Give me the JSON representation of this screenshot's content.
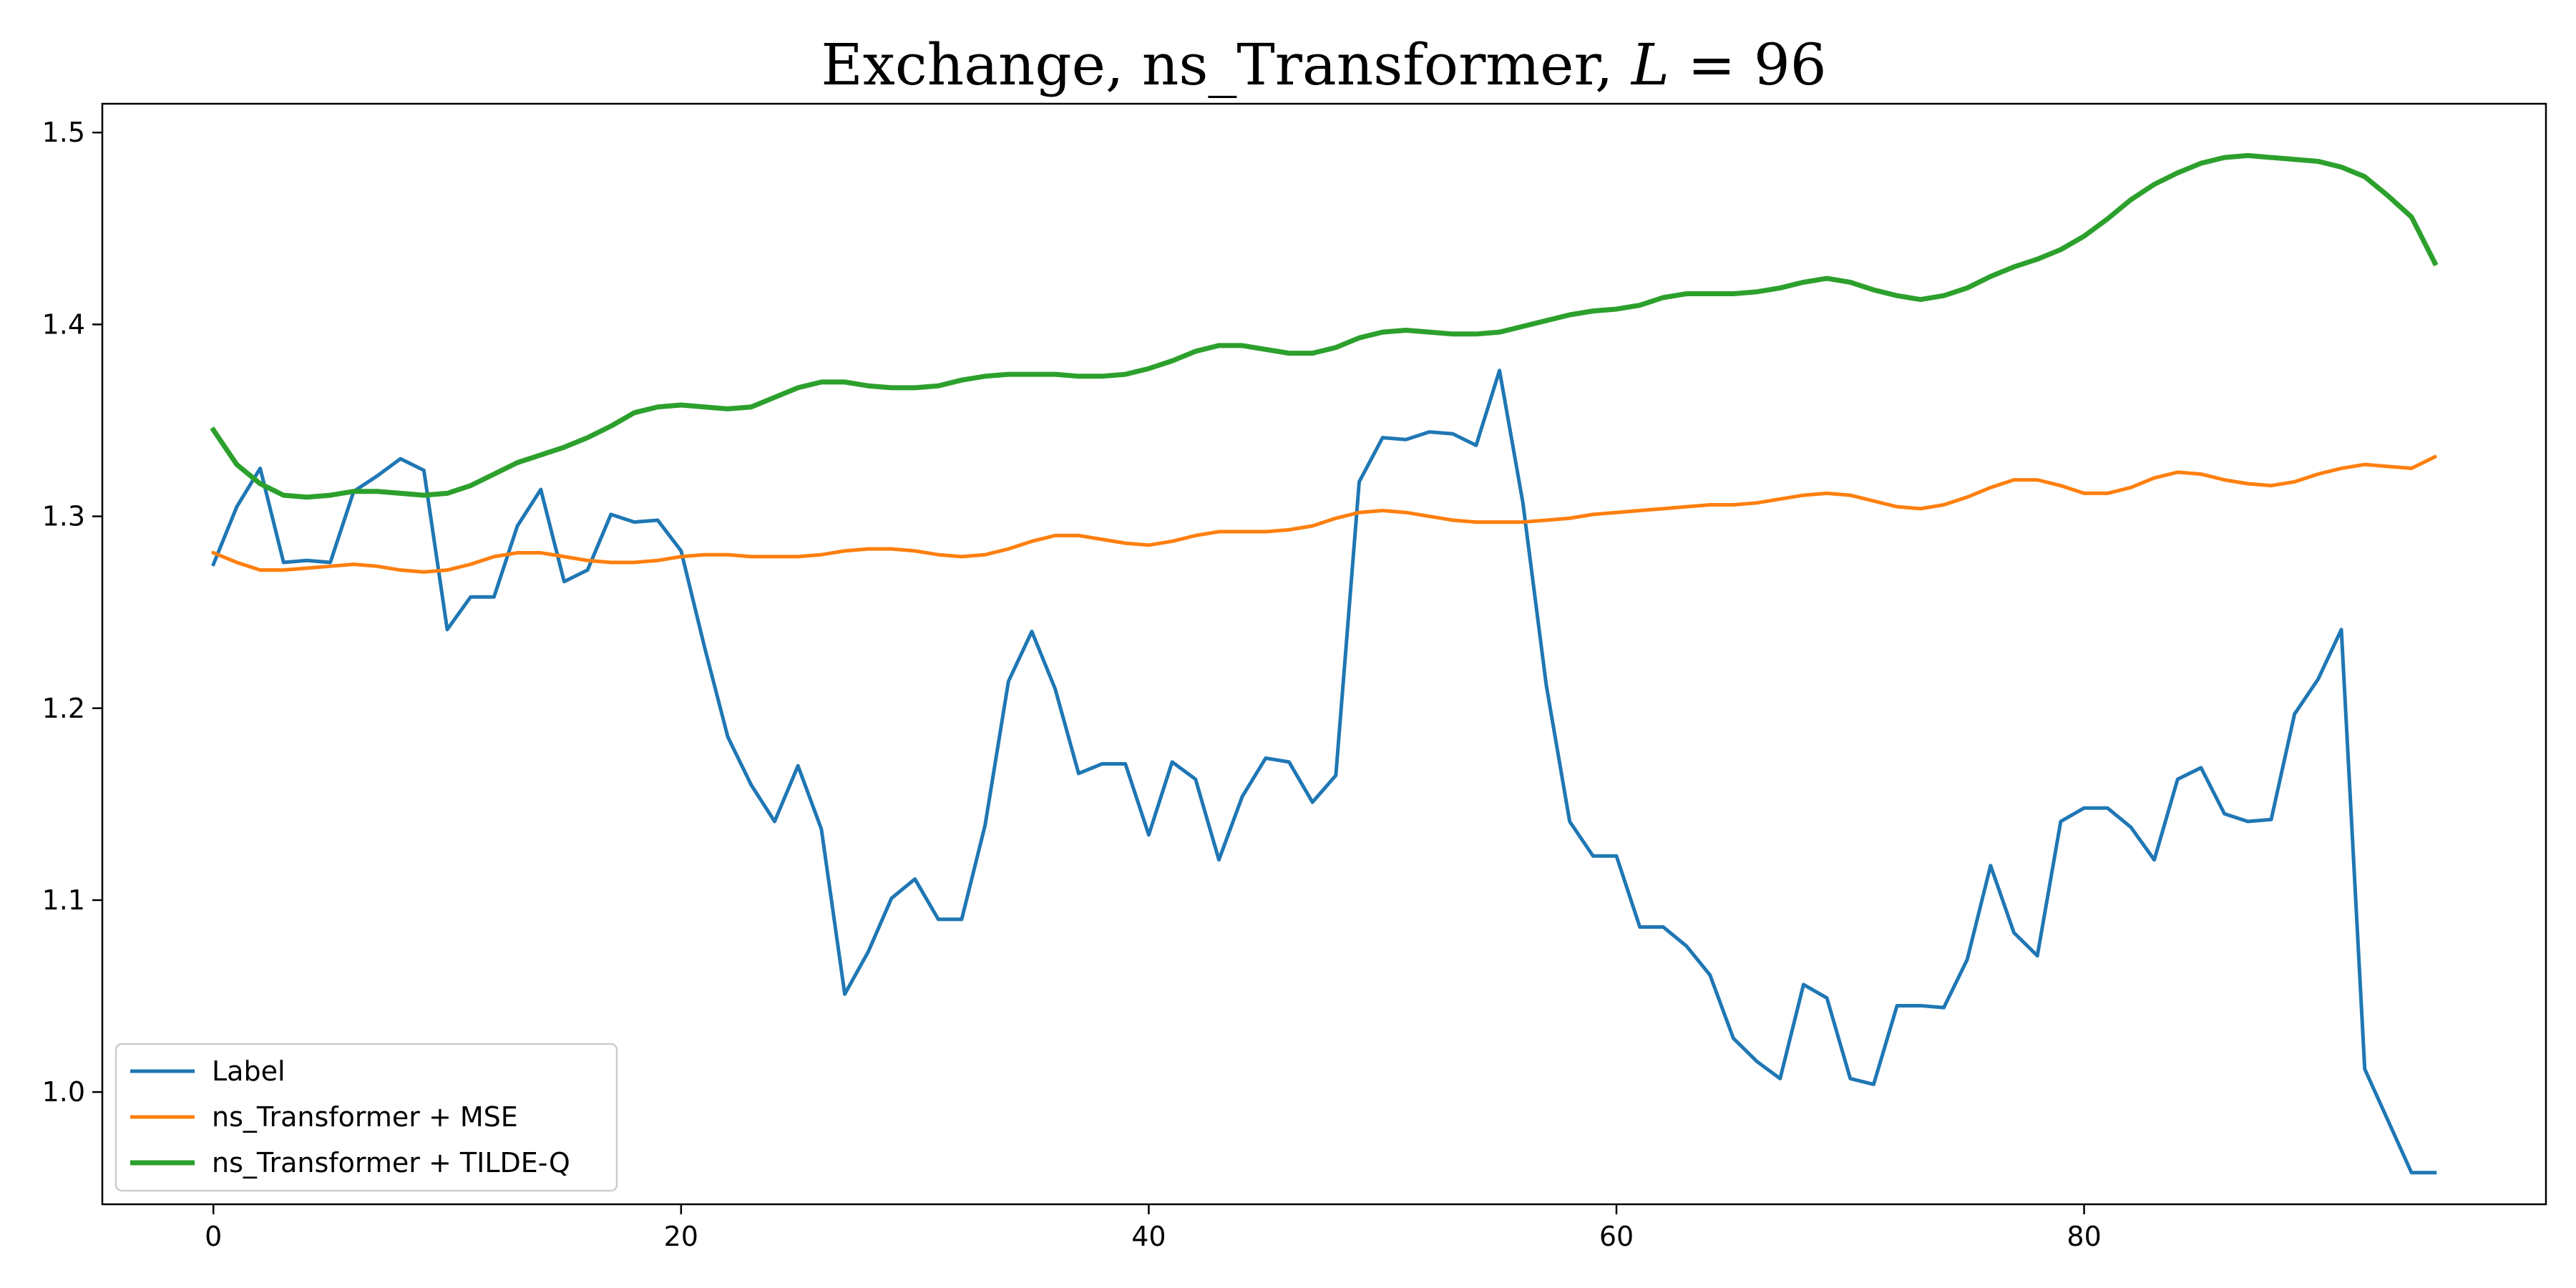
{
  "chart_data": {
    "type": "line",
    "title_prefix": "Exchange, ns_Transformer, ",
    "title_var": "L",
    "title_suffix": " = 96",
    "xlabel": "",
    "ylabel": "",
    "xlim": [
      -4.75,
      99.75
    ],
    "ylim": [
      0.9415,
      1.515
    ],
    "xticks": [
      0,
      20,
      40,
      60,
      80
    ],
    "yticks": [
      1.0,
      1.1,
      1.2,
      1.3,
      1.4,
      1.5
    ],
    "xtick_labels": [
      "0",
      "20",
      "40",
      "60",
      "80"
    ],
    "ytick_labels": [
      "1.0",
      "1.1",
      "1.2",
      "1.3",
      "1.4",
      "1.5"
    ],
    "grid": false,
    "legend_position": "lower-left",
    "series": [
      {
        "name": "Label",
        "color": "#1f77b4",
        "width": 5,
        "values": [
          1.275,
          1.305,
          1.325,
          1.276,
          1.277,
          1.276,
          1.313,
          1.321,
          1.33,
          1.324,
          1.241,
          1.258,
          1.258,
          1.295,
          1.314,
          1.266,
          1.272,
          1.301,
          1.297,
          1.298,
          1.282,
          1.232,
          1.185,
          1.16,
          1.141,
          1.17,
          1.137,
          1.051,
          1.073,
          1.101,
          1.111,
          1.09,
          1.09,
          1.139,
          1.214,
          1.24,
          1.21,
          1.166,
          1.171,
          1.171,
          1.134,
          1.172,
          1.163,
          1.121,
          1.154,
          1.174,
          1.172,
          1.151,
          1.165,
          1.318,
          1.341,
          1.34,
          1.344,
          1.343,
          1.337,
          1.376,
          1.307,
          1.212,
          1.141,
          1.123,
          1.123,
          1.086,
          1.086,
          1.076,
          1.061,
          1.028,
          1.016,
          1.007,
          1.056,
          1.049,
          1.007,
          1.004,
          1.045,
          1.045,
          1.044,
          1.069,
          1.118,
          1.083,
          1.071,
          1.141,
          1.148,
          1.148,
          1.138,
          1.121,
          1.163,
          1.169,
          1.145,
          1.141,
          1.142,
          1.197,
          1.215,
          1.241,
          1.012,
          0.985,
          0.958,
          0.958
        ]
      },
      {
        "name": "ns_Transformer + MSE",
        "color": "#ff7f0e",
        "width": 5,
        "values": [
          1.281,
          1.276,
          1.272,
          1.272,
          1.273,
          1.274,
          1.275,
          1.274,
          1.272,
          1.271,
          1.272,
          1.275,
          1.279,
          1.281,
          1.281,
          1.279,
          1.277,
          1.276,
          1.276,
          1.277,
          1.279,
          1.28,
          1.28,
          1.279,
          1.279,
          1.279,
          1.28,
          1.282,
          1.283,
          1.283,
          1.282,
          1.28,
          1.279,
          1.28,
          1.283,
          1.287,
          1.29,
          1.29,
          1.288,
          1.286,
          1.285,
          1.287,
          1.29,
          1.292,
          1.292,
          1.292,
          1.293,
          1.295,
          1.299,
          1.302,
          1.303,
          1.302,
          1.3,
          1.298,
          1.297,
          1.297,
          1.297,
          1.298,
          1.299,
          1.301,
          1.302,
          1.303,
          1.304,
          1.305,
          1.306,
          1.306,
          1.307,
          1.309,
          1.311,
          1.312,
          1.311,
          1.308,
          1.305,
          1.304,
          1.306,
          1.31,
          1.315,
          1.319,
          1.319,
          1.316,
          1.312,
          1.312,
          1.315,
          1.32,
          1.323,
          1.322,
          1.319,
          1.317,
          1.316,
          1.318,
          1.322,
          1.325,
          1.327,
          1.326,
          1.325,
          1.331
        ]
      },
      {
        "name": "ns_Transformer + TILDE-Q",
        "color": "#2ca02c",
        "width": 7,
        "values": [
          1.345,
          1.327,
          1.317,
          1.311,
          1.31,
          1.311,
          1.313,
          1.313,
          1.312,
          1.311,
          1.312,
          1.316,
          1.322,
          1.328,
          1.332,
          1.336,
          1.341,
          1.347,
          1.354,
          1.357,
          1.358,
          1.357,
          1.356,
          1.357,
          1.362,
          1.367,
          1.37,
          1.37,
          1.368,
          1.367,
          1.367,
          1.368,
          1.371,
          1.373,
          1.374,
          1.374,
          1.374,
          1.373,
          1.373,
          1.374,
          1.377,
          1.381,
          1.386,
          1.389,
          1.389,
          1.387,
          1.385,
          1.385,
          1.388,
          1.393,
          1.396,
          1.397,
          1.396,
          1.395,
          1.395,
          1.396,
          1.399,
          1.402,
          1.405,
          1.407,
          1.408,
          1.41,
          1.414,
          1.416,
          1.416,
          1.416,
          1.417,
          1.419,
          1.422,
          1.424,
          1.422,
          1.418,
          1.415,
          1.413,
          1.415,
          1.419,
          1.425,
          1.43,
          1.434,
          1.439,
          1.446,
          1.455,
          1.465,
          1.473,
          1.479,
          1.484,
          1.487,
          1.488,
          1.487,
          1.486,
          1.485,
          1.482,
          1.477,
          1.467,
          1.456,
          1.432
        ]
      }
    ]
  }
}
